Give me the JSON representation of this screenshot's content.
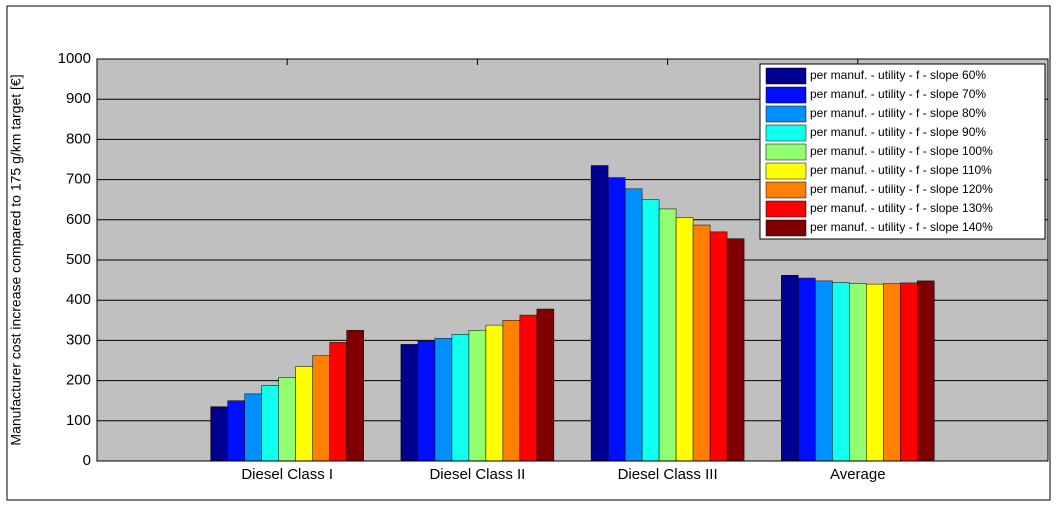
{
  "chart_data": {
    "type": "bar",
    "y_label": "Manufacturer cost increase compared to 175 g/km target [€]",
    "categories": [
      "Diesel Class I",
      "Diesel Class II",
      "Diesel Class III",
      "Average"
    ],
    "series": [
      {
        "name": "per manuf. - utility - f - slope 60%",
        "color": "#000090",
        "values": [
          135,
          290,
          735,
          462
        ]
      },
      {
        "name": "per manuf. - utility - f - slope 70%",
        "color": "#0010ff",
        "values": [
          150,
          298,
          705,
          455
        ]
      },
      {
        "name": "per manuf. - utility - f - slope 80%",
        "color": "#0090ff",
        "values": [
          167,
          305,
          677,
          448
        ]
      },
      {
        "name": "per manuf. - utility - f - slope 90%",
        "color": "#10ffef",
        "values": [
          188,
          315,
          650,
          444
        ]
      },
      {
        "name": "per manuf. - utility - f - slope 100%",
        "color": "#90ff70",
        "values": [
          208,
          325,
          627,
          441
        ]
      },
      {
        "name": "per manuf. - utility - f - slope 110%",
        "color": "#ffff00",
        "values": [
          235,
          338,
          605,
          440
        ]
      },
      {
        "name": "per manuf. - utility - f - slope 120%",
        "color": "#ff8000",
        "values": [
          262,
          350,
          587,
          441
        ]
      },
      {
        "name": "per manuf. - utility - f - slope 130%",
        "color": "#ff0000",
        "values": [
          295,
          363,
          570,
          443
        ]
      },
      {
        "name": "per manuf. - utility - f - slope 140%",
        "color": "#800000",
        "values": [
          325,
          378,
          553,
          448
        ]
      }
    ],
    "ylim": [
      0,
      1000
    ],
    "yticks": [
      0,
      100,
      200,
      300,
      400,
      500,
      600,
      700,
      800,
      900,
      1000
    ],
    "grid": true,
    "legend": "upper right"
  }
}
